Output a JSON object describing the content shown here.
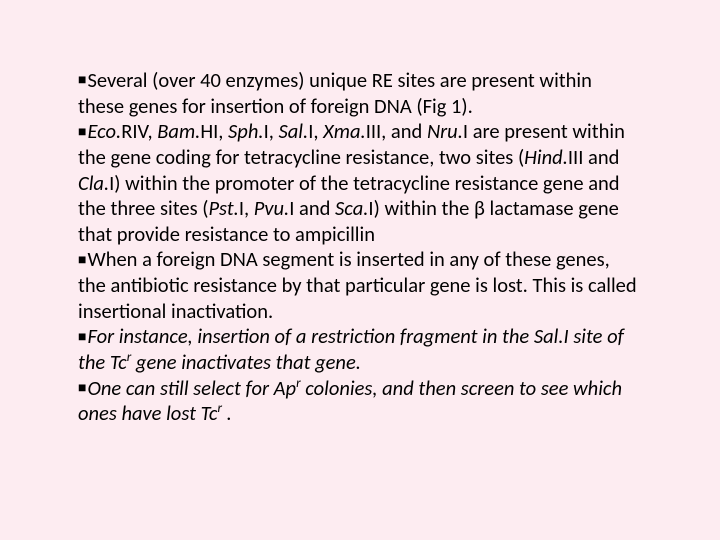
{
  "slide": {
    "background_color": "#fdecf1",
    "text_color": "#000000",
    "fontsize": 20.5,
    "bullets": {
      "b1": {
        "pre": "Several (over 40 enzymes) unique RE sites are present within these genes for insertion of foreign DNA (Fig 1)."
      },
      "b2": {
        "enz1": "Eco.",
        "t1": "RIV, ",
        "enz2": "Bam.",
        "t2": "HI, ",
        "enz3": "Sph.",
        "t3": "I, ",
        "enz4": "Sal.",
        "t4": "I, ",
        "enz5": "Xma.",
        "t5": "III, and ",
        "enz6": "Nru.",
        "t6": "I are present within the gene coding for tetracycline resistance, two sites (",
        "enz7": "Hind.",
        "t7": "III and ",
        "enz8": "Cla.",
        "t8": "I) within the promoter of the tetracycline resistance gene and the three sites  (",
        "enz9": "Pst.",
        "t9": "I, ",
        "enz10": "Pvu.",
        "t10": "I and ",
        "enz11": "Sca.",
        "t11": "I) within the β lactamase gene that provide resistance to ampicillin"
      },
      "b3": {
        "t1": "When a foreign DNA segment is inserted in any of these genes, the antibiotic resistance by that particular gene is lost. This is called insertional inactivation."
      },
      "b4": {
        "t1": "For instance, insertion of a restriction fragment in the Sal.I site of the Tc",
        "sup1": "r",
        "t2": " gene inactivates that gene."
      },
      "b5": {
        "t1": "One can still select for Ap",
        "sup1": "r",
        "t2": " colonies, and then screen to see which ones have lost Tc",
        "sup2": "r",
        "t3": " ."
      }
    }
  }
}
